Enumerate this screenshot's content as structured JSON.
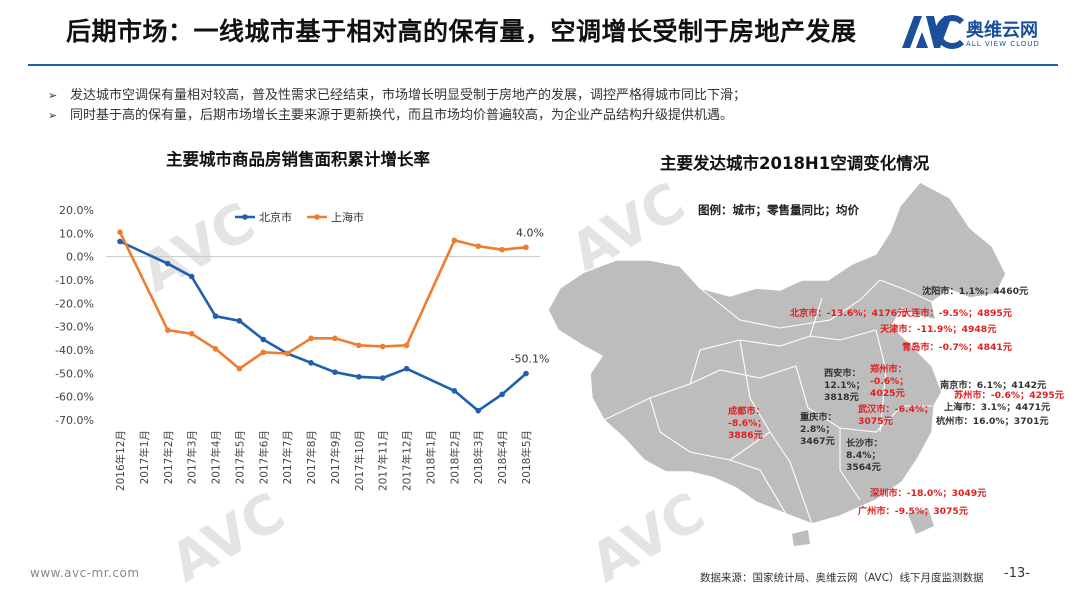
{
  "header": {
    "title": "后期市场：一线城市基于相对高的保有量，空调增长受制于房地产发展",
    "logo_cn": "奥维云网",
    "logo_en": "ALL VIEW CLOUD",
    "logo_mark": "AVC"
  },
  "bullets": [
    {
      "marker": "➢",
      "text": "发达城市空调保有量相对较高，普及性需求已经结束，市场增长明显受制于房地产的发展，调控严格得城市同比下滑；"
    },
    {
      "marker": "➢",
      "text": "同时基于高的保有量，后期市场增长主要来源于更新换代，而且市场均价普遍较高，为企业产品结构升级提供机遇。"
    }
  ],
  "chart_title": "主要城市商品房销售面积累计增长率",
  "chart_data": {
    "type": "line",
    "categories": [
      "2016年12月",
      "2017年1月",
      "2017年2月",
      "2017年3月",
      "2017年4月",
      "2017年5月",
      "2017年6月",
      "2017年7月",
      "2017年8月",
      "2017年9月",
      "2017年10月",
      "2017年11月",
      "2017年12月",
      "2018年1月",
      "2018年2月",
      "2018年3月",
      "2018年4月",
      "2018年5月"
    ],
    "ylim": [
      -70,
      20
    ],
    "yticks": [
      20,
      10,
      0,
      -10,
      -20,
      -30,
      -40,
      -50,
      -60,
      -70
    ],
    "ytick_labels": [
      "20.0%",
      "10.0%",
      "0.0%",
      "-10.0%",
      "-20.0%",
      "-30.0%",
      "-40.0%",
      "-50.0%",
      "-60.0%",
      "-70.0%"
    ],
    "legend_position": "top-left",
    "series": [
      {
        "name": "北京市",
        "color": "#1f5fad",
        "values": [
          6.5,
          null,
          -3.0,
          -8.5,
          -25.5,
          -27.5,
          -35.5,
          -41.5,
          -45.5,
          -49.5,
          -51.5,
          -52.0,
          -48.0,
          null,
          -57.5,
          -66.0,
          -59.0,
          -50.1
        ],
        "end_label": "-50.1%"
      },
      {
        "name": "上海市",
        "color": "#ed7d31",
        "values": [
          10.5,
          null,
          -31.5,
          -33.0,
          -39.5,
          -48.0,
          -41.0,
          -41.5,
          -35.0,
          -35.0,
          -38.0,
          -38.5,
          -38.0,
          null,
          7.0,
          4.5,
          3.0,
          4.0
        ],
        "end_label": "4.0%"
      }
    ]
  },
  "map_title": "主要发达城市2018H1空调变化情况",
  "map_legend": "图例：城市；零售量同比；均价",
  "map_fill": "#bdbdbd",
  "cities": [
    {
      "text": "沈阳市：1.1%；4460元",
      "color": "#333333"
    },
    {
      "text": "北京市：-13.6%；4176元",
      "color": "#e02020"
    },
    {
      "text": "大连市：-9.5%；4895元",
      "color": "#e02020"
    },
    {
      "text": "天津市：-11.9%；4948元",
      "color": "#e02020"
    },
    {
      "text": "青岛市：-0.7%；4841元",
      "color": "#e02020"
    },
    {
      "lines": [
        "西安市：",
        "12.1%；",
        "3818元"
      ],
      "color": "#333333"
    },
    {
      "lines": [
        "郑州市：",
        "-0.6%；",
        "4025元"
      ],
      "color": "#e02020"
    },
    {
      "text": "南京市：6.1%；4142元",
      "color": "#333333"
    },
    {
      "text": "苏州市：-0.6%；4295元",
      "color": "#e02020"
    },
    {
      "text": "上海市：3.1%；4471元",
      "color": "#333333"
    },
    {
      "text": "杭州市：16.0%；3701元",
      "color": "#333333"
    },
    {
      "lines": [
        "成都市：",
        "-8.6%；",
        "3886元"
      ],
      "color": "#e02020"
    },
    {
      "lines": [
        "重庆市：",
        "2.8%；",
        "3467元"
      ],
      "color": "#333333"
    },
    {
      "lines": [
        "武汉市：-6.4%；",
        "3075元"
      ],
      "color": "#e02020"
    },
    {
      "lines": [
        "长沙市：",
        "8.4%；",
        "3564元"
      ],
      "color": "#333333"
    },
    {
      "text": "深圳市：-18.0%；3049元",
      "color": "#e02020"
    },
    {
      "text": "广州市：-9.5%；3075元",
      "color": "#e02020"
    }
  ],
  "footer": {
    "website": "www.avc-mr.com",
    "source": "数据来源：国家统计局、奥维云网（AVC）线下月度监测数据",
    "page": "-13-"
  }
}
